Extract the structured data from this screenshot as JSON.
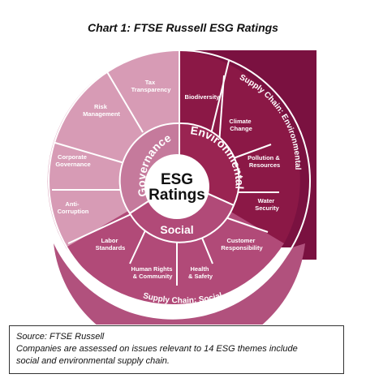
{
  "title": "Chart 1: FTSE Russell ESG Ratings",
  "center": {
    "line1": "ESG",
    "line2": "Ratings"
  },
  "pillars": {
    "governance": "Governance",
    "environmental": "Environmental",
    "social": "Social"
  },
  "supply_chain": {
    "environmental": "Supply Chain: Environmental",
    "social": "Supply Chain: Social"
  },
  "themes": {
    "tax_transparency": [
      "Tax",
      "Transparency"
    ],
    "risk_management": [
      "Risk",
      "Management"
    ],
    "corporate_governance": [
      "Corporate",
      "Governance"
    ],
    "anti_corruption": [
      "Anti-",
      "Corruption"
    ],
    "biodiversity": [
      "Biodiversity"
    ],
    "climate_change": [
      "Climate",
      "Change"
    ],
    "pollution_resources": [
      "Pollution &",
      "Resources"
    ],
    "water_security": [
      "Water",
      "Security"
    ],
    "customer_responsibility": [
      "Customer",
      "Responsibility"
    ],
    "health_safety": [
      "Health",
      "& Safety"
    ],
    "human_rights_community": [
      "Human Rights",
      "& Community"
    ],
    "labor_standards": [
      "Labor",
      "Standards"
    ]
  },
  "source": {
    "line1": "Source: FTSE Russell",
    "line2": "Companies are assessed on issues relevant to 14 ESG themes include",
    "line3": "social and environmental supply chain."
  },
  "colors": {
    "environmental_dark": "#8b1846",
    "environmental_ring": "#9a2452",
    "supply_env": "#7a1140",
    "social_mid": "#b14a78",
    "supply_social": "#b1517d",
    "governance_light": "#d79bb5",
    "governance_ring": "#c57a9c",
    "separator": "#ffffff"
  }
}
